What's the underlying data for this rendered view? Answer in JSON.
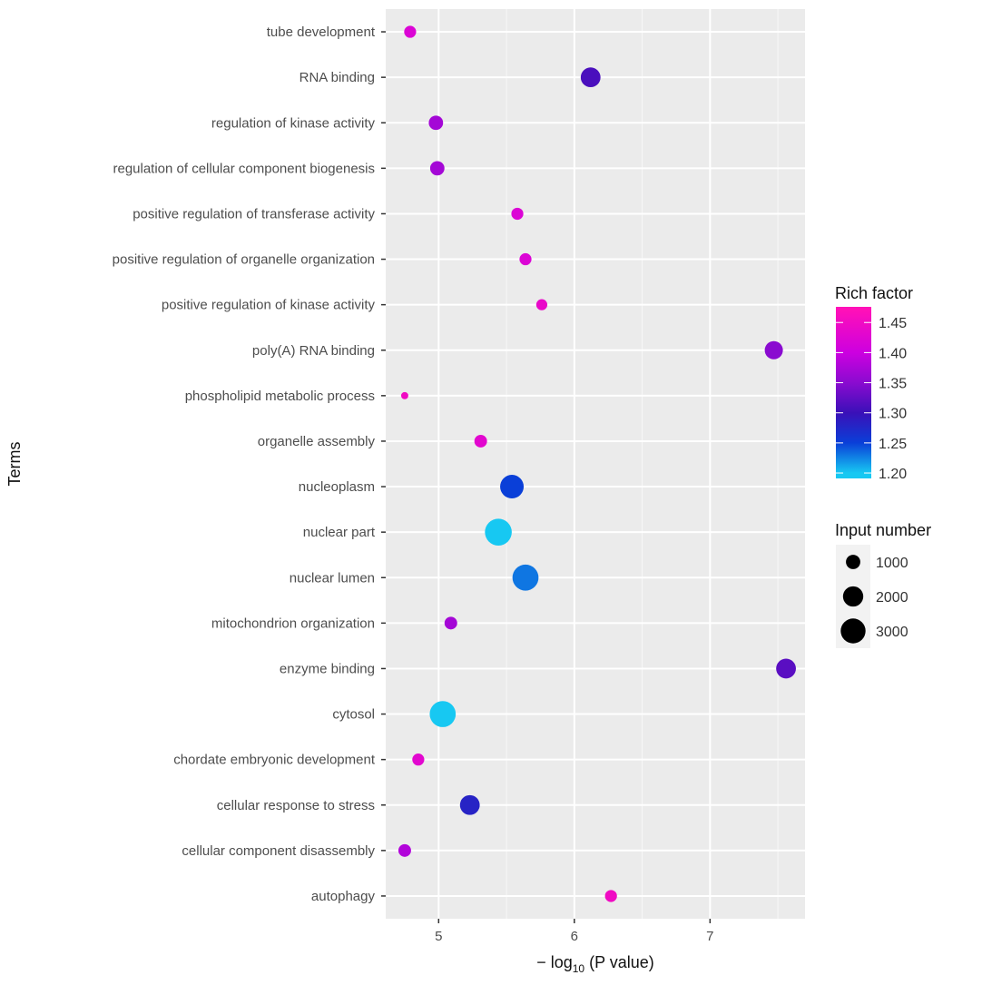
{
  "chart_data": {
    "type": "scatter",
    "xlabel_prefix": "− log",
    "xlabel_sub": "10",
    "xlabel_suffix": " (P value)",
    "ylabel": "Terms",
    "xlim": [
      4.61,
      7.7
    ],
    "x_ticks": [
      5,
      6,
      7
    ],
    "grid": true,
    "background": "#ebebeb",
    "categories": [
      "tube development",
      "RNA binding",
      "regulation of kinase activity",
      "regulation of cellular component biogenesis",
      "positive regulation of transferase activity",
      "positive regulation of organelle organization",
      "positive regulation of kinase activity",
      "poly(A) RNA binding",
      "phospholipid metabolic process",
      "organelle assembly",
      "nucleoplasm",
      "nuclear part",
      "nuclear lumen",
      "mitochondrion organization",
      "enzyme binding",
      "cytosol",
      "chordate embryonic development",
      "cellular response to stress",
      "cellular component disassembly",
      "autophagy"
    ],
    "x": [
      4.79,
      6.12,
      4.98,
      4.99,
      5.58,
      5.64,
      5.76,
      7.47,
      4.75,
      5.31,
      5.54,
      5.44,
      5.64,
      5.09,
      7.56,
      5.03,
      4.85,
      5.23,
      4.75,
      6.27
    ],
    "input_number": [
      700,
      1900,
      1000,
      1000,
      700,
      700,
      600,
      1600,
      250,
      780,
      2700,
      3500,
      3300,
      780,
      1900,
      3300,
      700,
      1900,
      780,
      700
    ],
    "rich_factor": [
      1.42,
      1.31,
      1.37,
      1.37,
      1.42,
      1.42,
      1.44,
      1.35,
      1.45,
      1.43,
      1.25,
      1.2,
      1.23,
      1.37,
      1.32,
      1.2,
      1.43,
      1.28,
      1.38,
      1.45
    ],
    "legend_color": {
      "title": "Rich factor",
      "ticks": [
        "1.45",
        "1.40",
        "1.35",
        "1.30",
        "1.25",
        "1.20"
      ],
      "range": [
        1.191,
        1.476
      ],
      "colors": [
        "#17c8f2",
        "#0a3fd8",
        "#3a10b8",
        "#8a0bd0",
        "#cc00e0",
        "#ff10b8"
      ],
      "stops": [
        1.2,
        1.25,
        1.3,
        1.35,
        1.4,
        1.47
      ]
    },
    "legend_size": {
      "title": "Input number",
      "values": [
        1000,
        2000,
        3000
      ],
      "labels": [
        "1000",
        "2000",
        "3000"
      ]
    },
    "legend_placement": "right"
  }
}
